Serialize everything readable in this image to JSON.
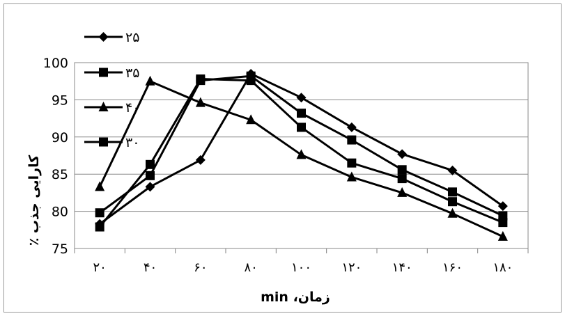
{
  "chart_data": {
    "type": "line",
    "xlabel": "زمان، min",
    "ylabel": "کارایی جذب ٪",
    "categories": [
      "۲۰",
      "۴۰",
      "۶۰",
      "۸۰",
      "۱۰۰",
      "۱۲۰",
      "۱۴۰",
      "۱۶۰",
      "۱۸۰"
    ],
    "ylim": [
      75,
      100
    ],
    "yticks": [
      75,
      80,
      85,
      90,
      95,
      100
    ],
    "grid": "horizontal",
    "legend_position": "top-left",
    "series": [
      {
        "name": "۲۵",
        "marker": "diamond",
        "values": [
          78.3,
          83.3,
          86.9,
          98.5,
          95.3,
          91.3,
          87.7,
          85.5,
          80.7
        ]
      },
      {
        "name": "۳۵",
        "marker": "square",
        "values": [
          77.9,
          86.3,
          97.8,
          97.6,
          91.3,
          86.5,
          84.4,
          81.3,
          78.5
        ]
      },
      {
        "name": "۴۰",
        "marker": "triangle",
        "values": [
          83.3,
          97.5,
          94.6,
          92.3,
          87.6,
          84.6,
          82.5,
          79.7,
          76.6
        ]
      },
      {
        "name": "۳۰",
        "marker": "square",
        "values": [
          79.8,
          84.8,
          97.6,
          98.2,
          93.2,
          89.6,
          85.6,
          82.6,
          79.4
        ]
      }
    ],
    "colors": {
      "line": "#000000",
      "grid": "#888888",
      "axis": "#808080",
      "frame": "#9a9a9a"
    }
  }
}
